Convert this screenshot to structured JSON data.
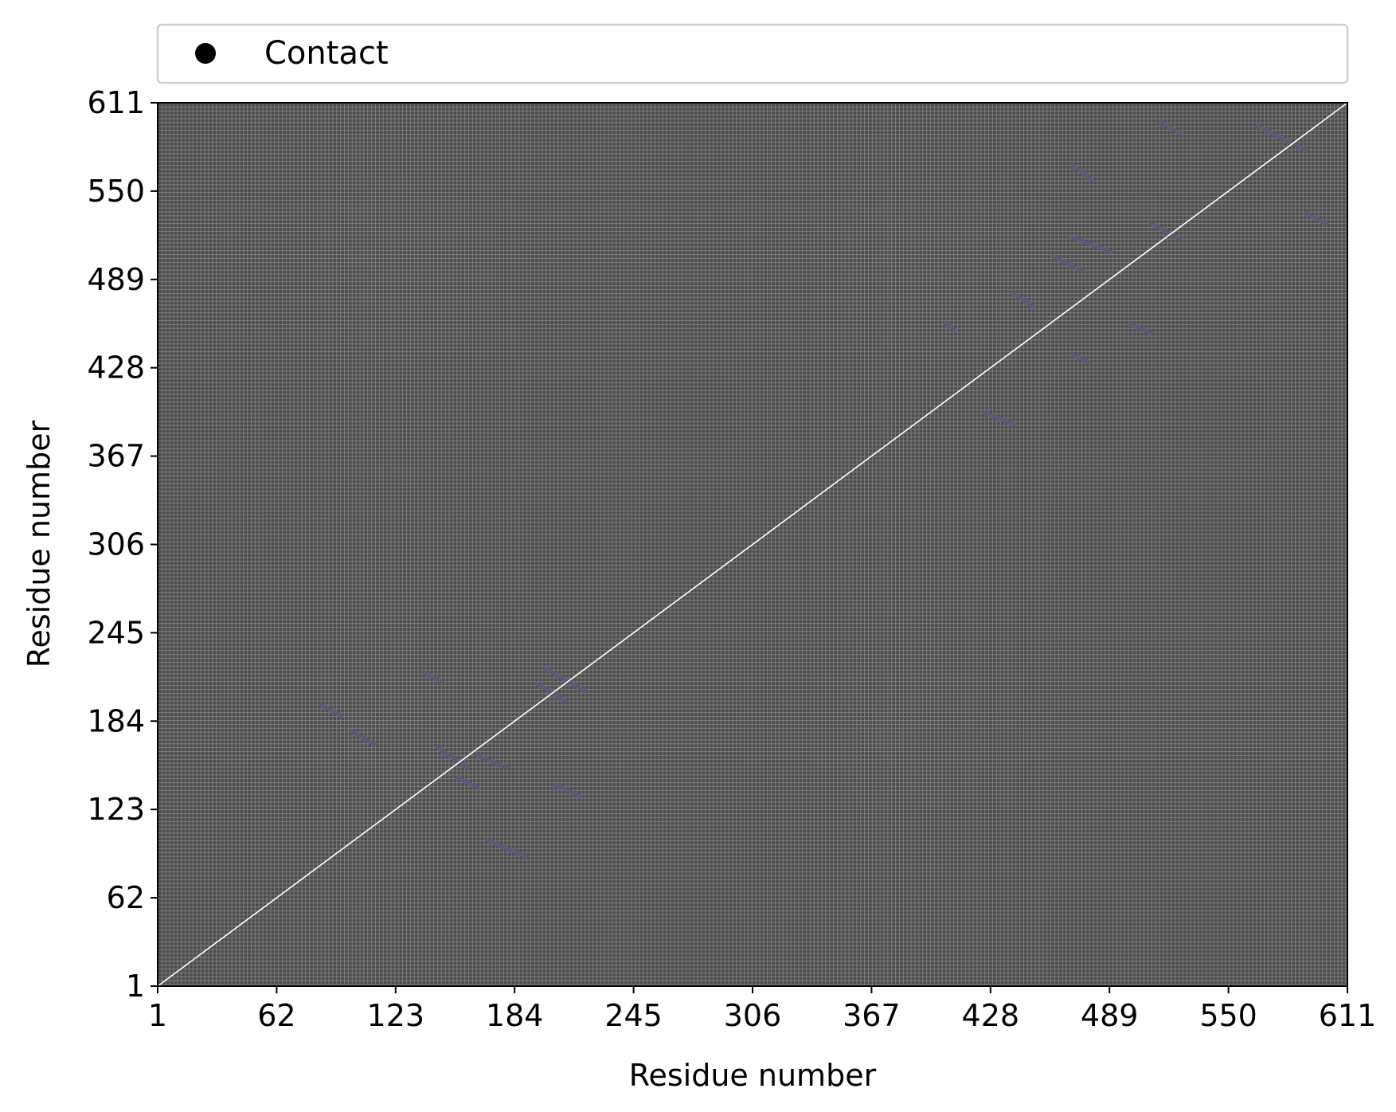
{
  "chart_data": {
    "type": "heatmap",
    "title": "",
    "xlabel": "Residue number",
    "ylabel": "Residue number",
    "xlim": [
      1,
      611
    ],
    "ylim": [
      1,
      611
    ],
    "xticks": [
      1,
      62,
      123,
      184,
      245,
      306,
      367,
      428,
      489,
      550,
      611
    ],
    "yticks": [
      1,
      62,
      123,
      184,
      245,
      306,
      367,
      428,
      489,
      550,
      611
    ],
    "legend": {
      "placement": "top",
      "entries": [
        {
          "label": "Contact",
          "marker": "circle",
          "color": "#000000"
        }
      ]
    },
    "colors": {
      "background": "#505050",
      "diagonal": "#ffffff",
      "contacts": "#5c5a76",
      "grid": "#7a7a7a"
    },
    "grid": true,
    "diagonal": {
      "from": 1,
      "to": 611
    },
    "contact_segments": [
      {
        "x": [
          137,
          147
        ],
        "y": [
          218,
          211
        ]
      },
      {
        "x": [
          145,
          160
        ],
        "y": [
          165,
          152
        ]
      },
      {
        "x": [
          155,
          165
        ],
        "y": [
          145,
          138
        ]
      },
      {
        "x": [
          165,
          180
        ],
        "y": [
          160,
          152
        ]
      },
      {
        "x": [
          200,
          220
        ],
        "y": [
          220,
          205
        ]
      },
      {
        "x": [
          195,
          210
        ],
        "y": [
          210,
          198
        ]
      },
      {
        "x": [
          205,
          218
        ],
        "y": [
          140,
          132
        ]
      },
      {
        "x": [
          170,
          190
        ],
        "y": [
          102,
          90
        ]
      },
      {
        "x": [
          100,
          112
        ],
        "y": [
          177,
          168
        ]
      },
      {
        "x": [
          85,
          95
        ],
        "y": [
          195,
          188
        ]
      },
      {
        "x": [
          425,
          440
        ],
        "y": [
          397,
          389
        ]
      },
      {
        "x": [
          440,
          450
        ],
        "y": [
          479,
          470
        ]
      },
      {
        "x": [
          460,
          475
        ],
        "y": [
          505,
          495
        ]
      },
      {
        "x": [
          470,
          490
        ],
        "y": [
          518,
          508
        ]
      },
      {
        "x": [
          470,
          480
        ],
        "y": [
          568,
          558
        ]
      },
      {
        "x": [
          510,
          525
        ],
        "y": [
          528,
          517
        ]
      },
      {
        "x": [
          515,
          525
        ],
        "y": [
          598,
          590
        ]
      },
      {
        "x": [
          565,
          590
        ],
        "y": [
          595,
          578
        ]
      },
      {
        "x": [
          590,
          600
        ],
        "y": [
          535,
          527
        ]
      },
      {
        "x": [
          500,
          510
        ],
        "y": [
          458,
          452
        ]
      },
      {
        "x": [
          470,
          478
        ],
        "y": [
          437,
          432
        ]
      },
      {
        "x": [
          405,
          410
        ],
        "y": [
          459,
          454
        ]
      }
    ]
  }
}
